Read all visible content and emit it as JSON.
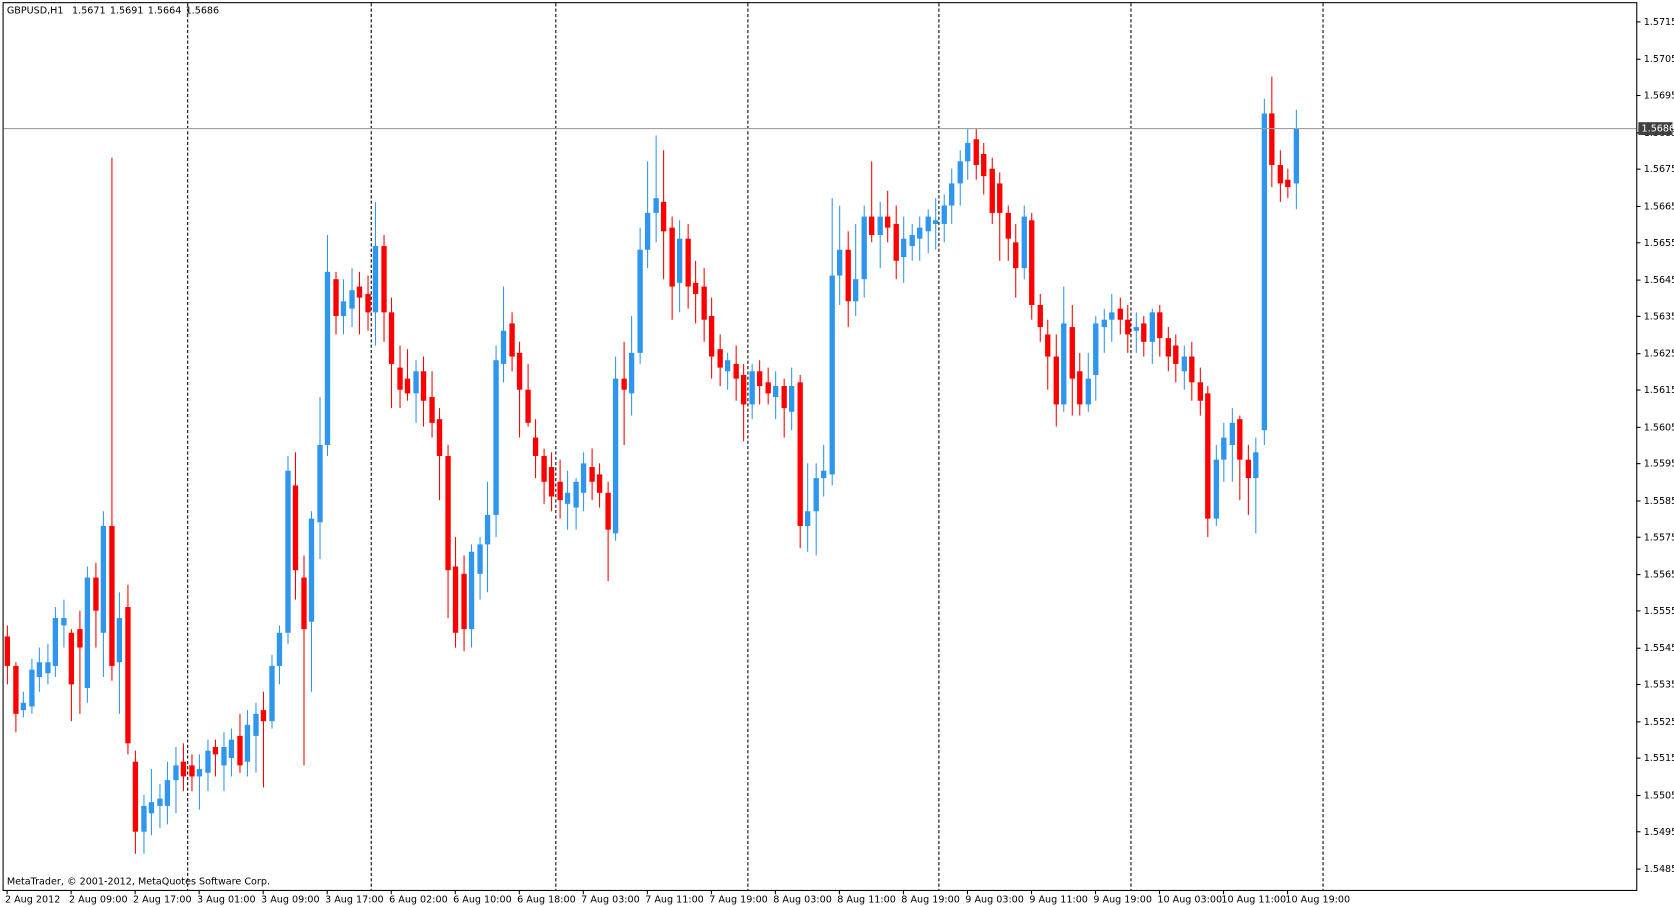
{
  "chart_data": {
    "type": "candlestick",
    "symbol": "GBPUSD,H1",
    "footer": "MetaTrader, © 2001-2012, MetaQuotes Software Corp.",
    "up_color": "#2f96f0",
    "down_color": "#ff0000",
    "ylim": [
      1.54789,
      1.57208
    ],
    "yticks": [
      1.5715,
      1.5705,
      1.5695,
      1.5685,
      1.5675,
      1.5665,
      1.5655,
      1.5645,
      1.5635,
      1.5625,
      1.5615,
      1.5605,
      1.5595,
      1.5585,
      1.5575,
      1.5565,
      1.5555,
      1.5545,
      1.5535,
      1.5525,
      1.5515,
      1.5505,
      1.5495,
      1.5485
    ],
    "categories": [
      "2 Aug 2012",
      null,
      null,
      null,
      null,
      null,
      null,
      null,
      "2 Aug 09:00",
      null,
      null,
      null,
      null,
      null,
      null,
      null,
      "2 Aug 17:00",
      null,
      null,
      null,
      null,
      null,
      null,
      null,
      "3 Aug 01:00",
      null,
      null,
      null,
      null,
      null,
      null,
      null,
      "3 Aug 09:00",
      null,
      null,
      null,
      null,
      null,
      null,
      null,
      "3 Aug 17:00",
      null,
      null,
      null,
      null,
      null,
      null,
      null,
      "6 Aug 02:00",
      null,
      null,
      null,
      null,
      null,
      null,
      null,
      "6 Aug 10:00",
      null,
      null,
      null,
      null,
      null,
      null,
      null,
      "6 Aug 18:00",
      null,
      null,
      null,
      null,
      null,
      null,
      null,
      "7 Aug 03:00",
      null,
      null,
      null,
      null,
      null,
      null,
      null,
      "7 Aug 11:00",
      null,
      null,
      null,
      null,
      null,
      null,
      null,
      "7 Aug 19:00",
      null,
      null,
      null,
      null,
      null,
      null,
      null,
      "8 Aug 03:00",
      null,
      null,
      null,
      null,
      null,
      null,
      null,
      "8 Aug 11:00",
      null,
      null,
      null,
      null,
      null,
      null,
      null,
      "8 Aug 19:00",
      null,
      null,
      null,
      null,
      null,
      null,
      null,
      "9 Aug 03:00",
      null,
      null,
      null,
      null,
      null,
      null,
      null,
      "9 Aug 11:00",
      null,
      null,
      null,
      null,
      null,
      null,
      null,
      "9 Aug 19:00",
      null,
      null,
      null,
      null,
      null,
      null,
      null,
      "10 Aug 03:00",
      null,
      null,
      null,
      null,
      null,
      null,
      null,
      "10 Aug 11:00",
      null,
      null,
      null,
      null,
      null,
      null,
      null,
      "10 Aug 19:00",
      null
    ],
    "ohlc": [
      [
        1.5548,
        1.5551,
        1.5535,
        1.554
      ],
      [
        1.554,
        1.5541,
        1.5522,
        1.5527
      ],
      [
        1.5528,
        1.5533,
        1.5526,
        1.553
      ],
      [
        1.5529,
        1.5542,
        1.5527,
        1.5539
      ],
      [
        1.5537,
        1.5545,
        1.5533,
        1.5541
      ],
      [
        1.5538,
        1.5546,
        1.5535,
        1.5541
      ],
      [
        1.554,
        1.5556,
        1.5537,
        1.5553
      ],
      [
        1.5551,
        1.5558,
        1.5545,
        1.5553
      ],
      [
        1.5549,
        1.555,
        1.5525,
        1.5535
      ],
      [
        1.555,
        1.5555,
        1.5527,
        1.5545
      ],
      [
        1.5534,
        1.5567,
        1.553,
        1.5564
      ],
      [
        1.5564,
        1.5568,
        1.5545,
        1.5555
      ],
      [
        1.5549,
        1.5582,
        1.5537,
        1.5578
      ],
      [
        1.5578,
        1.5678,
        1.5536,
        1.554
      ],
      [
        1.5541,
        1.556,
        1.5527,
        1.5553
      ],
      [
        1.5556,
        1.5562,
        1.5516,
        1.5519
      ],
      [
        1.5514,
        1.5517,
        1.5489,
        1.5495
      ],
      [
        1.5495,
        1.5505,
        1.5489,
        1.5502
      ],
      [
        1.55,
        1.5512,
        1.5494,
        1.5503
      ],
      [
        1.5502,
        1.5508,
        1.5496,
        1.5504
      ],
      [
        1.5502,
        1.5514,
        1.5497,
        1.5509
      ],
      [
        1.5509,
        1.5518,
        1.55,
        1.5513
      ],
      [
        1.5514,
        1.5519,
        1.5506,
        1.551
      ],
      [
        1.5513,
        1.5516,
        1.5506,
        1.551
      ],
      [
        1.551,
        1.5516,
        1.5501,
        1.5512
      ],
      [
        1.5511,
        1.552,
        1.5506,
        1.5517
      ],
      [
        1.5518,
        1.552,
        1.551,
        1.5516
      ],
      [
        1.5513,
        1.5522,
        1.5506,
        1.5518
      ],
      [
        1.5515,
        1.5523,
        1.551,
        1.552
      ],
      [
        1.5521,
        1.5527,
        1.5511,
        1.5513
      ],
      [
        1.5514,
        1.5528,
        1.551,
        1.5524
      ],
      [
        1.5521,
        1.553,
        1.5511,
        1.5527
      ],
      [
        1.5528,
        1.5533,
        1.5507,
        1.5525
      ],
      [
        1.5525,
        1.5543,
        1.5523,
        1.554
      ],
      [
        1.554,
        1.5551,
        1.5535,
        1.5549
      ],
      [
        1.5549,
        1.5597,
        1.5546,
        1.5593
      ],
      [
        1.5589,
        1.5598,
        1.5558,
        1.5566
      ],
      [
        1.5564,
        1.557,
        1.5513,
        1.555
      ],
      [
        1.5552,
        1.5582,
        1.5533,
        1.558
      ],
      [
        1.5579,
        1.5613,
        1.5569,
        1.56
      ],
      [
        1.56,
        1.5657,
        1.5597,
        1.5647
      ],
      [
        1.5645,
        1.5647,
        1.563,
        1.5635
      ],
      [
        1.5635,
        1.5645,
        1.563,
        1.5639
      ],
      [
        1.5637,
        1.5648,
        1.5632,
        1.5642
      ],
      [
        1.5643,
        1.5647,
        1.563,
        1.564
      ],
      [
        1.5641,
        1.5646,
        1.5631,
        1.5636
      ],
      [
        1.5636,
        1.5666,
        1.5627,
        1.5654
      ],
      [
        1.5654,
        1.5657,
        1.5628,
        1.5636
      ],
      [
        1.5636,
        1.564,
        1.561,
        1.5622
      ],
      [
        1.5621,
        1.5627,
        1.561,
        1.5615
      ],
      [
        1.5618,
        1.5626,
        1.5612,
        1.5614
      ],
      [
        1.5614,
        1.5623,
        1.5606,
        1.562
      ],
      [
        1.562,
        1.5624,
        1.5605,
        1.5612
      ],
      [
        1.5613,
        1.562,
        1.5602,
        1.5606
      ],
      [
        1.5607,
        1.561,
        1.5585,
        1.5597
      ],
      [
        1.5597,
        1.56,
        1.5553,
        1.5566
      ],
      [
        1.5567,
        1.5575,
        1.5545,
        1.5549
      ],
      [
        1.5565,
        1.557,
        1.5544,
        1.555
      ],
      [
        1.555,
        1.5573,
        1.5545,
        1.5571
      ],
      [
        1.5565,
        1.5575,
        1.5558,
        1.5573
      ],
      [
        1.5573,
        1.559,
        1.556,
        1.5581
      ],
      [
        1.5581,
        1.5627,
        1.5575,
        1.5623
      ],
      [
        1.5622,
        1.5643,
        1.5617,
        1.5631
      ],
      [
        1.5633,
        1.5636,
        1.562,
        1.5624
      ],
      [
        1.5625,
        1.5628,
        1.5602,
        1.5615
      ],
      [
        1.5615,
        1.5622,
        1.5605,
        1.5606
      ],
      [
        1.5602,
        1.5607,
        1.5591,
        1.5597
      ],
      [
        1.5597,
        1.5599,
        1.5584,
        1.559
      ],
      [
        1.5594,
        1.5598,
        1.5582,
        1.5586
      ],
      [
        1.559,
        1.5596,
        1.558,
        1.5585
      ],
      [
        1.5584,
        1.5593,
        1.5577,
        1.5587
      ],
      [
        1.5583,
        1.5591,
        1.5577,
        1.559
      ],
      [
        1.5587,
        1.5598,
        1.5582,
        1.5595
      ],
      [
        1.5594,
        1.5599,
        1.5585,
        1.559
      ],
      [
        1.5592,
        1.5595,
        1.5583,
        1.5587
      ],
      [
        1.5587,
        1.559,
        1.5563,
        1.5577
      ],
      [
        1.5576,
        1.5624,
        1.5574,
        1.5618
      ],
      [
        1.5618,
        1.5628,
        1.56,
        1.5615
      ],
      [
        1.5614,
        1.5635,
        1.5608,
        1.5625
      ],
      [
        1.5625,
        1.5659,
        1.5622,
        1.5653
      ],
      [
        1.5653,
        1.5677,
        1.5648,
        1.5663
      ],
      [
        1.5663,
        1.5684,
        1.5655,
        1.5667
      ],
      [
        1.5666,
        1.568,
        1.5645,
        1.5658
      ],
      [
        1.5659,
        1.5662,
        1.5634,
        1.5643
      ],
      [
        1.5644,
        1.5661,
        1.5636,
        1.5656
      ],
      [
        1.5656,
        1.566,
        1.5637,
        1.5643
      ],
      [
        1.5644,
        1.565,
        1.5633,
        1.5641
      ],
      [
        1.5643,
        1.5648,
        1.5628,
        1.5634
      ],
      [
        1.5635,
        1.564,
        1.5618,
        1.5624
      ],
      [
        1.5626,
        1.563,
        1.5616,
        1.5621
      ],
      [
        1.562,
        1.5625,
        1.5615,
        1.5623
      ],
      [
        1.5622,
        1.5627,
        1.5612,
        1.5618
      ],
      [
        1.5619,
        1.5622,
        1.5601,
        1.5611
      ],
      [
        1.5611,
        1.5622,
        1.5607,
        1.562
      ],
      [
        1.562,
        1.5623,
        1.5611,
        1.5616
      ],
      [
        1.5617,
        1.5621,
        1.5611,
        1.5614
      ],
      [
        1.5613,
        1.562,
        1.5607,
        1.5616
      ],
      [
        1.5616,
        1.5618,
        1.5602,
        1.561
      ],
      [
        1.5609,
        1.5621,
        1.5604,
        1.5616
      ],
      [
        1.5617,
        1.5619,
        1.5572,
        1.5578
      ],
      [
        1.5578,
        1.5595,
        1.5571,
        1.5582
      ],
      [
        1.5582,
        1.5595,
        1.557,
        1.5591
      ],
      [
        1.5591,
        1.56,
        1.5586,
        1.5593
      ],
      [
        1.5592,
        1.5667,
        1.5589,
        1.5646
      ],
      [
        1.5646,
        1.5665,
        1.5638,
        1.5653
      ],
      [
        1.5653,
        1.5658,
        1.5632,
        1.5639
      ],
      [
        1.5639,
        1.566,
        1.5635,
        1.5645
      ],
      [
        1.5645,
        1.5665,
        1.564,
        1.5662
      ],
      [
        1.5662,
        1.5677,
        1.5655,
        1.5657
      ],
      [
        1.5657,
        1.5666,
        1.5648,
        1.5662
      ],
      [
        1.5662,
        1.5669,
        1.5655,
        1.5659
      ],
      [
        1.566,
        1.5665,
        1.5645,
        1.565
      ],
      [
        1.5651,
        1.5662,
        1.5644,
        1.5656
      ],
      [
        1.5654,
        1.566,
        1.565,
        1.5657
      ],
      [
        1.5656,
        1.5662,
        1.565,
        1.5659
      ],
      [
        1.5658,
        1.5664,
        1.5652,
        1.5662
      ],
      [
        1.566,
        1.5667,
        1.5653,
        1.5661
      ],
      [
        1.566,
        1.5668,
        1.5655,
        1.5665
      ],
      [
        1.5665,
        1.5675,
        1.566,
        1.5671
      ],
      [
        1.5671,
        1.568,
        1.5665,
        1.5677
      ],
      [
        1.5677,
        1.5686,
        1.5672,
        1.5682
      ],
      [
        1.5683,
        1.5686,
        1.5672,
        1.5676
      ],
      [
        1.5679,
        1.5682,
        1.5668,
        1.5673
      ],
      [
        1.5675,
        1.5678,
        1.566,
        1.5663
      ],
      [
        1.5671,
        1.5674,
        1.565,
        1.5663
      ],
      [
        1.5663,
        1.5665,
        1.565,
        1.5656
      ],
      [
        1.5655,
        1.566,
        1.564,
        1.5648
      ],
      [
        1.5648,
        1.5665,
        1.5645,
        1.5662
      ],
      [
        1.5661,
        1.5663,
        1.5634,
        1.5638
      ],
      [
        1.5638,
        1.5641,
        1.5628,
        1.5632
      ],
      [
        1.563,
        1.5634,
        1.5615,
        1.5624
      ],
      [
        1.5624,
        1.563,
        1.5605,
        1.5611
      ],
      [
        1.5611,
        1.5643,
        1.5609,
        1.5633
      ],
      [
        1.5632,
        1.5638,
        1.5608,
        1.5618
      ],
      [
        1.562,
        1.5625,
        1.5608,
        1.5611
      ],
      [
        1.5611,
        1.5625,
        1.5609,
        1.5618
      ],
      [
        1.5619,
        1.5635,
        1.5612,
        1.5633
      ],
      [
        1.5632,
        1.5637,
        1.5625,
        1.5634
      ],
      [
        1.5634,
        1.5641,
        1.5628,
        1.5636
      ],
      [
        1.5637,
        1.564,
        1.563,
        1.5634
      ],
      [
        1.5634,
        1.5638,
        1.5625,
        1.563
      ],
      [
        1.5631,
        1.5636,
        1.5625,
        1.5632
      ],
      [
        1.5633,
        1.5635,
        1.5624,
        1.5628
      ],
      [
        1.5628,
        1.5637,
        1.5622,
        1.5636
      ],
      [
        1.5636,
        1.5638,
        1.5624,
        1.5629
      ],
      [
        1.5629,
        1.5632,
        1.562,
        1.5624
      ],
      [
        1.5627,
        1.563,
        1.5617,
        1.5622
      ],
      [
        1.562,
        1.5627,
        1.5615,
        1.5624
      ],
      [
        1.5624,
        1.5628,
        1.5612,
        1.5617
      ],
      [
        1.5617,
        1.5621,
        1.5608,
        1.5612
      ],
      [
        1.5614,
        1.5616,
        1.5575,
        1.558
      ],
      [
        1.558,
        1.56,
        1.5578,
        1.5596
      ],
      [
        1.5596,
        1.5606,
        1.559,
        1.5602
      ],
      [
        1.56,
        1.561,
        1.559,
        1.5606
      ],
      [
        1.5607,
        1.5608,
        1.5585,
        1.5596
      ],
      [
        1.5596,
        1.56,
        1.5581,
        1.5591
      ],
      [
        1.5591,
        1.5602,
        1.5576,
        1.5598
      ],
      [
        1.5604,
        1.5694,
        1.56,
        1.569
      ],
      [
        1.569,
        1.57,
        1.567,
        1.5676
      ],
      [
        1.5676,
        1.568,
        1.5666,
        1.5671
      ],
      [
        1.5672,
        1.5675,
        1.5667,
        1.567
      ],
      [
        1.5671,
        1.5691,
        1.5664,
        1.5686
      ]
    ]
  }
}
